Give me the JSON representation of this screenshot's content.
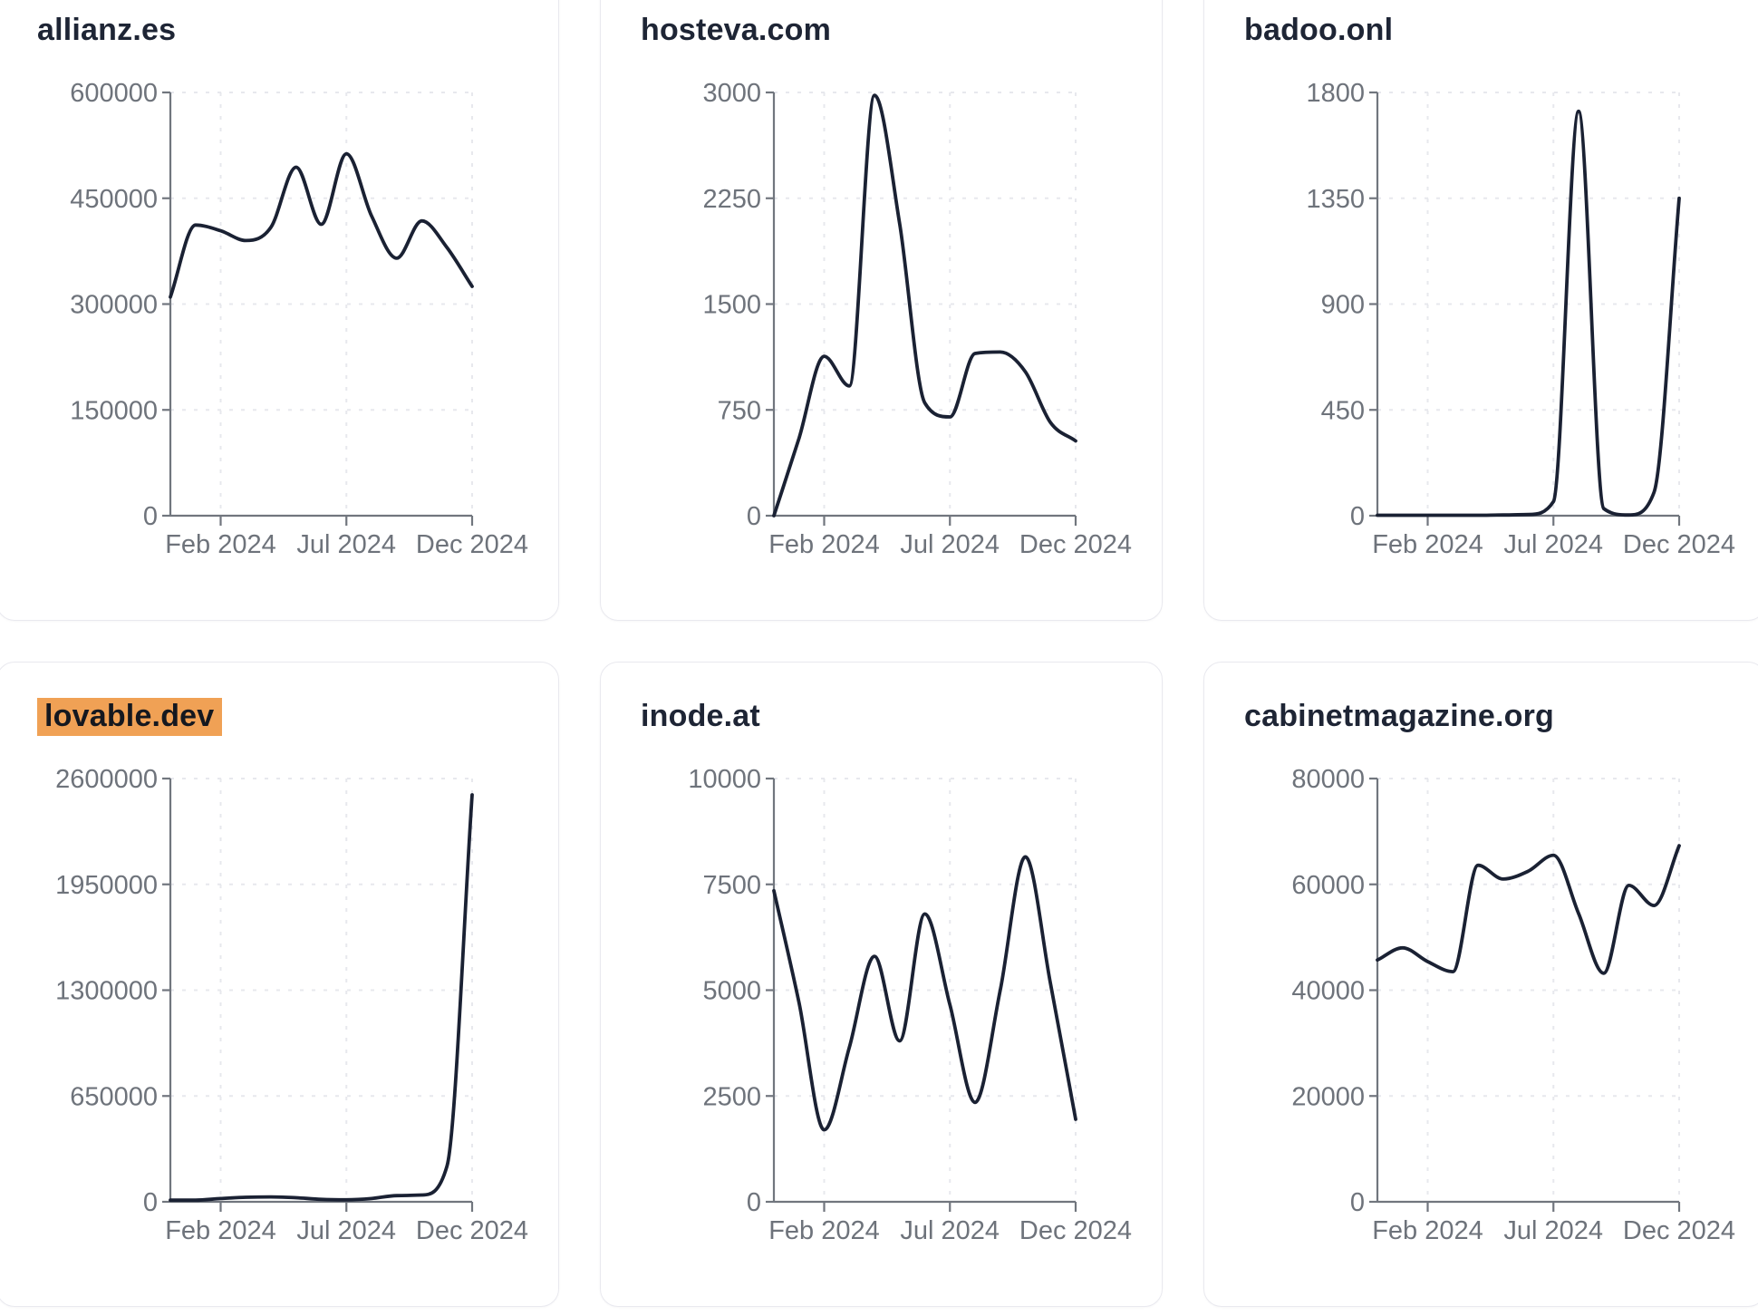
{
  "page": {
    "colors": {
      "page_bg": "#ffffff",
      "card_border": "#e9e9ef",
      "title": "#1e2535",
      "highlight_bg": "#f0a155",
      "highlight_text": "#15181f",
      "line": "#1a2133",
      "axis": "#71767e",
      "tick_label": "#6e737b",
      "grid": "#e7e8ed"
    }
  },
  "chart_data": [
    {
      "type": "line",
      "title": "allianz.es",
      "highlighted": false,
      "categories": [
        "Dec 2023",
        "Jan 2024",
        "Feb 2024",
        "Mar 2024",
        "Apr 2024",
        "May 2024",
        "Jun 2024",
        "Jul 2024",
        "Aug 2024",
        "Sep 2024",
        "Oct 2024",
        "Nov 2024",
        "Dec 2024"
      ],
      "values": [
        310000,
        412000,
        404000,
        390000,
        409000,
        494000,
        413000,
        513000,
        425000,
        365000,
        418000,
        380000,
        325000
      ],
      "ylim": [
        0,
        600000
      ],
      "yticks": [
        0,
        150000,
        300000,
        450000,
        600000
      ],
      "xtick_labels": [
        "Feb 2024",
        "Jul 2024",
        "Dec 2024"
      ],
      "xtick_indices": [
        2,
        7,
        12
      ],
      "grid": "dashed",
      "legend": "none"
    },
    {
      "type": "line",
      "title": "hosteva.com",
      "highlighted": false,
      "categories": [
        "Dec 2023",
        "Jan 2024",
        "Feb 2024",
        "Mar 2024",
        "Apr 2024",
        "May 2024",
        "Jun 2024",
        "Jul 2024",
        "Aug 2024",
        "Sep 2024",
        "Oct 2024",
        "Nov 2024",
        "Dec 2024"
      ],
      "values": [
        0,
        550,
        1130,
        920,
        2980,
        2070,
        800,
        700,
        1150,
        1160,
        1020,
        660,
        530
      ],
      "ylim": [
        0,
        3000
      ],
      "yticks": [
        0,
        750,
        1500,
        2250,
        3000
      ],
      "xtick_labels": [
        "Feb 2024",
        "Jul 2024",
        "Dec 2024"
      ],
      "xtick_indices": [
        2,
        7,
        12
      ],
      "grid": "dashed",
      "legend": "none"
    },
    {
      "type": "line",
      "title": "badoo.onl",
      "highlighted": false,
      "categories": [
        "Dec 2023",
        "Jan 2024",
        "Feb 2024",
        "Mar 2024",
        "Apr 2024",
        "May 2024",
        "Jun 2024",
        "Jul 2024",
        "Aug 2024",
        "Sep 2024",
        "Oct 2024",
        "Nov 2024",
        "Dec 2024"
      ],
      "values": [
        2,
        2,
        2,
        2,
        2,
        3,
        5,
        60,
        1720,
        30,
        3,
        100,
        1350
      ],
      "ylim": [
        0,
        1800
      ],
      "yticks": [
        0,
        450,
        900,
        1350,
        1800
      ],
      "xtick_labels": [
        "Feb 2024",
        "Jul 2024",
        "Dec 2024"
      ],
      "xtick_indices": [
        2,
        7,
        12
      ],
      "grid": "dashed",
      "legend": "none"
    },
    {
      "type": "line",
      "title": "lovable.dev",
      "highlighted": true,
      "categories": [
        "Dec 2023",
        "Jan 2024",
        "Feb 2024",
        "Mar 2024",
        "Apr 2024",
        "May 2024",
        "Jun 2024",
        "Jul 2024",
        "Aug 2024",
        "Sep 2024",
        "Oct 2024",
        "Nov 2024",
        "Dec 2024"
      ],
      "values": [
        10000,
        10000,
        20000,
        28000,
        30000,
        25000,
        15000,
        12000,
        20000,
        38000,
        42000,
        220000,
        2500000
      ],
      "ylim": [
        0,
        2600000
      ],
      "yticks": [
        0,
        650000,
        1300000,
        1950000,
        2600000
      ],
      "xtick_labels": [
        "Feb 2024",
        "Jul 2024",
        "Dec 2024"
      ],
      "xtick_indices": [
        2,
        7,
        12
      ],
      "grid": "dashed",
      "legend": "none"
    },
    {
      "type": "line",
      "title": "inode.at",
      "highlighted": false,
      "categories": [
        "Dec 2023",
        "Jan 2024",
        "Feb 2024",
        "Mar 2024",
        "Apr 2024",
        "May 2024",
        "Jun 2024",
        "Jul 2024",
        "Aug 2024",
        "Sep 2024",
        "Oct 2024",
        "Nov 2024",
        "Dec 2024"
      ],
      "values": [
        7350,
        4700,
        1700,
        3650,
        5800,
        3800,
        6800,
        4650,
        2350,
        5000,
        8150,
        5150,
        1950
      ],
      "ylim": [
        0,
        10000
      ],
      "yticks": [
        0,
        2500,
        5000,
        7500,
        10000
      ],
      "xtick_labels": [
        "Feb 2024",
        "Jul 2024",
        "Dec 2024"
      ],
      "xtick_indices": [
        2,
        7,
        12
      ],
      "grid": "dashed",
      "legend": "none"
    },
    {
      "type": "line",
      "title": "cabinetmagazine.org",
      "highlighted": false,
      "categories": [
        "Dec 2023",
        "Jan 2024",
        "Feb 2024",
        "Mar 2024",
        "Apr 2024",
        "May 2024",
        "Jun 2024",
        "Jul 2024",
        "Aug 2024",
        "Sep 2024",
        "Oct 2024",
        "Nov 2024",
        "Dec 2024"
      ],
      "values": [
        45700,
        48000,
        45400,
        43500,
        63600,
        61000,
        62500,
        65500,
        54500,
        43200,
        59800,
        56000,
        67300
      ],
      "ylim": [
        0,
        80000
      ],
      "yticks": [
        0,
        20000,
        40000,
        60000,
        80000
      ],
      "xtick_labels": [
        "Feb 2024",
        "Jul 2024",
        "Dec 2024"
      ],
      "xtick_indices": [
        2,
        7,
        12
      ],
      "grid": "dashed",
      "legend": "none"
    }
  ]
}
